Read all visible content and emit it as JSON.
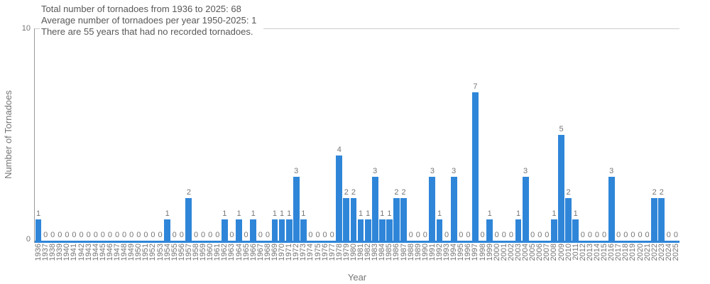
{
  "annotation": {
    "line1": "Total number of tornadoes from 1936 to 2025: 68",
    "line2": "Average number of tornadoes per year 1950-2025: 1",
    "line3": "There are 55 years that had no recorded tornadoes."
  },
  "y_axis": {
    "top_tick": "10",
    "bottom_tick": "0"
  },
  "chart_data": {
    "type": "bar",
    "title": "",
    "xlabel": "Year",
    "ylabel": "Number of Tornadoes",
    "ylim": [
      0,
      10
    ],
    "ytick_values": [
      0,
      10
    ],
    "grid": "single horizontal gridline at y=10",
    "legend": "none",
    "bar_value_labels_shown": true,
    "categories": [
      "1936",
      "1937",
      "1938",
      "1939",
      "1940",
      "1941",
      "1942",
      "1943",
      "1944",
      "1945",
      "1946",
      "1947",
      "1948",
      "1949",
      "1950",
      "1951",
      "1952",
      "1953",
      "1954",
      "1955",
      "1956",
      "1957",
      "1958",
      "1959",
      "1960",
      "1961",
      "1962",
      "1963",
      "1964",
      "1965",
      "1966",
      "1967",
      "1968",
      "1969",
      "1970",
      "1971",
      "1972",
      "1973",
      "1974",
      "1975",
      "1976",
      "1977",
      "1978",
      "1979",
      "1980",
      "1981",
      "1982",
      "1983",
      "1984",
      "1985",
      "1986",
      "1987",
      "1988",
      "1989",
      "1990",
      "1991",
      "1992",
      "1993",
      "1994",
      "1995",
      "1996",
      "1997",
      "1998",
      "1999",
      "2000",
      "2001",
      "2002",
      "2003",
      "2004",
      "2005",
      "2006",
      "2007",
      "2008",
      "2009",
      "2010",
      "2011",
      "2012",
      "2013",
      "2014",
      "2015",
      "2016",
      "2017",
      "2018",
      "2019",
      "2020",
      "2021",
      "2022",
      "2023",
      "2024",
      "2025"
    ],
    "values": [
      1,
      0,
      0,
      0,
      0,
      0,
      0,
      0,
      0,
      0,
      0,
      0,
      0,
      0,
      0,
      0,
      0,
      0,
      1,
      0,
      0,
      2,
      0,
      0,
      0,
      0,
      1,
      0,
      1,
      0,
      1,
      0,
      0,
      1,
      1,
      1,
      3,
      1,
      0,
      0,
      0,
      0,
      4,
      2,
      2,
      1,
      1,
      3,
      1,
      1,
      2,
      2,
      0,
      0,
      0,
      3,
      1,
      0,
      3,
      0,
      0,
      7,
      0,
      1,
      0,
      0,
      0,
      1,
      3,
      0,
      0,
      0,
      1,
      5,
      2,
      1,
      0,
      0,
      0,
      0,
      3,
      0,
      0,
      0,
      0,
      0,
      2,
      2,
      0,
      0
    ]
  },
  "colors": {
    "bar": "#2f86d9",
    "baseline": "#2f86d9",
    "axis_line": "#9a9a9a",
    "gridline": "#cccccc",
    "annotation_text": "#58585a",
    "tick_text": "#757575",
    "background": "#ffffff"
  }
}
